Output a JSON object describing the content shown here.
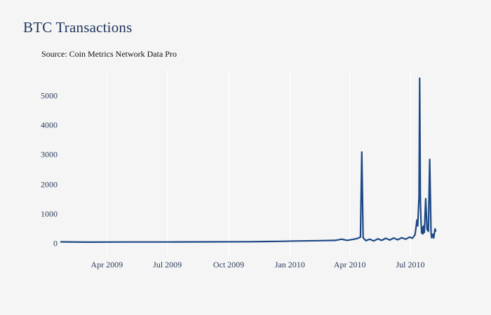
{
  "header": {
    "title": "BTC Transactions",
    "source": "Source: Coin Metrics Network Data Pro"
  },
  "colors": {
    "background": "#f4f5f4",
    "line": "#1d4886",
    "gridline": "#fdfdfd",
    "title_text": "#22365e",
    "tick_text": "#2c3c5e",
    "source_text": "#111111"
  },
  "chart_data": {
    "type": "line",
    "title": "BTC Transactions",
    "subtitle": "Source: Coin Metrics Network Data Pro",
    "xlabel": "",
    "ylabel": "",
    "legend": "none",
    "grid": "vertical-white-gridlines-only",
    "ylim": [
      0,
      5600
    ],
    "y_ticks": [
      0,
      1000,
      2000,
      3000,
      4000,
      5000
    ],
    "x_range": [
      "2009-01-20",
      "2010-08-10"
    ],
    "x_ticks": [
      {
        "date": "2009-04-01",
        "label": "Apr 2009"
      },
      {
        "date": "2009-07-01",
        "label": "Jul 2009"
      },
      {
        "date": "2009-10-01",
        "label": "Oct 2009"
      },
      {
        "date": "2010-01-01",
        "label": "Jan 2010"
      },
      {
        "date": "2010-04-01",
        "label": "Apr 2010"
      },
      {
        "date": "2010-07-01",
        "label": "Jul 2010"
      }
    ],
    "series": [
      {
        "name": "BTC Transactions",
        "points": [
          [
            "2009-01-22",
            60
          ],
          [
            "2009-03-01",
            50
          ],
          [
            "2009-05-01",
            55
          ],
          [
            "2009-07-01",
            55
          ],
          [
            "2009-09-01",
            60
          ],
          [
            "2009-11-01",
            65
          ],
          [
            "2009-12-15",
            75
          ],
          [
            "2010-01-15",
            90
          ],
          [
            "2010-02-15",
            100
          ],
          [
            "2010-03-10",
            110
          ],
          [
            "2010-03-20",
            150
          ],
          [
            "2010-03-28",
            110
          ],
          [
            "2010-04-05",
            140
          ],
          [
            "2010-04-12",
            170
          ],
          [
            "2010-04-17",
            220
          ],
          [
            "2010-04-19",
            3100
          ],
          [
            "2010-04-21",
            200
          ],
          [
            "2010-04-25",
            100
          ],
          [
            "2010-05-01",
            150
          ],
          [
            "2010-05-07",
            90
          ],
          [
            "2010-05-13",
            160
          ],
          [
            "2010-05-19",
            110
          ],
          [
            "2010-05-25",
            180
          ],
          [
            "2010-05-31",
            120
          ],
          [
            "2010-06-06",
            190
          ],
          [
            "2010-06-12",
            130
          ],
          [
            "2010-06-18",
            200
          ],
          [
            "2010-06-24",
            150
          ],
          [
            "2010-06-30",
            220
          ],
          [
            "2010-07-04",
            180
          ],
          [
            "2010-07-08",
            300
          ],
          [
            "2010-07-11",
            800
          ],
          [
            "2010-07-12",
            600
          ],
          [
            "2010-07-14",
            1570
          ],
          [
            "2010-07-15",
            5600
          ],
          [
            "2010-07-16",
            1500
          ],
          [
            "2010-07-17",
            750
          ],
          [
            "2010-07-18",
            350
          ],
          [
            "2010-07-19",
            550
          ],
          [
            "2010-07-20",
            330
          ],
          [
            "2010-07-21",
            600
          ],
          [
            "2010-07-22",
            380
          ],
          [
            "2010-07-24",
            1520
          ],
          [
            "2010-07-26",
            480
          ],
          [
            "2010-07-28",
            420
          ],
          [
            "2010-07-30",
            2850
          ],
          [
            "2010-08-01",
            380
          ],
          [
            "2010-08-02",
            200
          ],
          [
            "2010-08-04",
            320
          ],
          [
            "2010-08-05",
            190
          ],
          [
            "2010-08-07",
            500
          ],
          [
            "2010-08-08",
            430
          ]
        ]
      }
    ]
  }
}
